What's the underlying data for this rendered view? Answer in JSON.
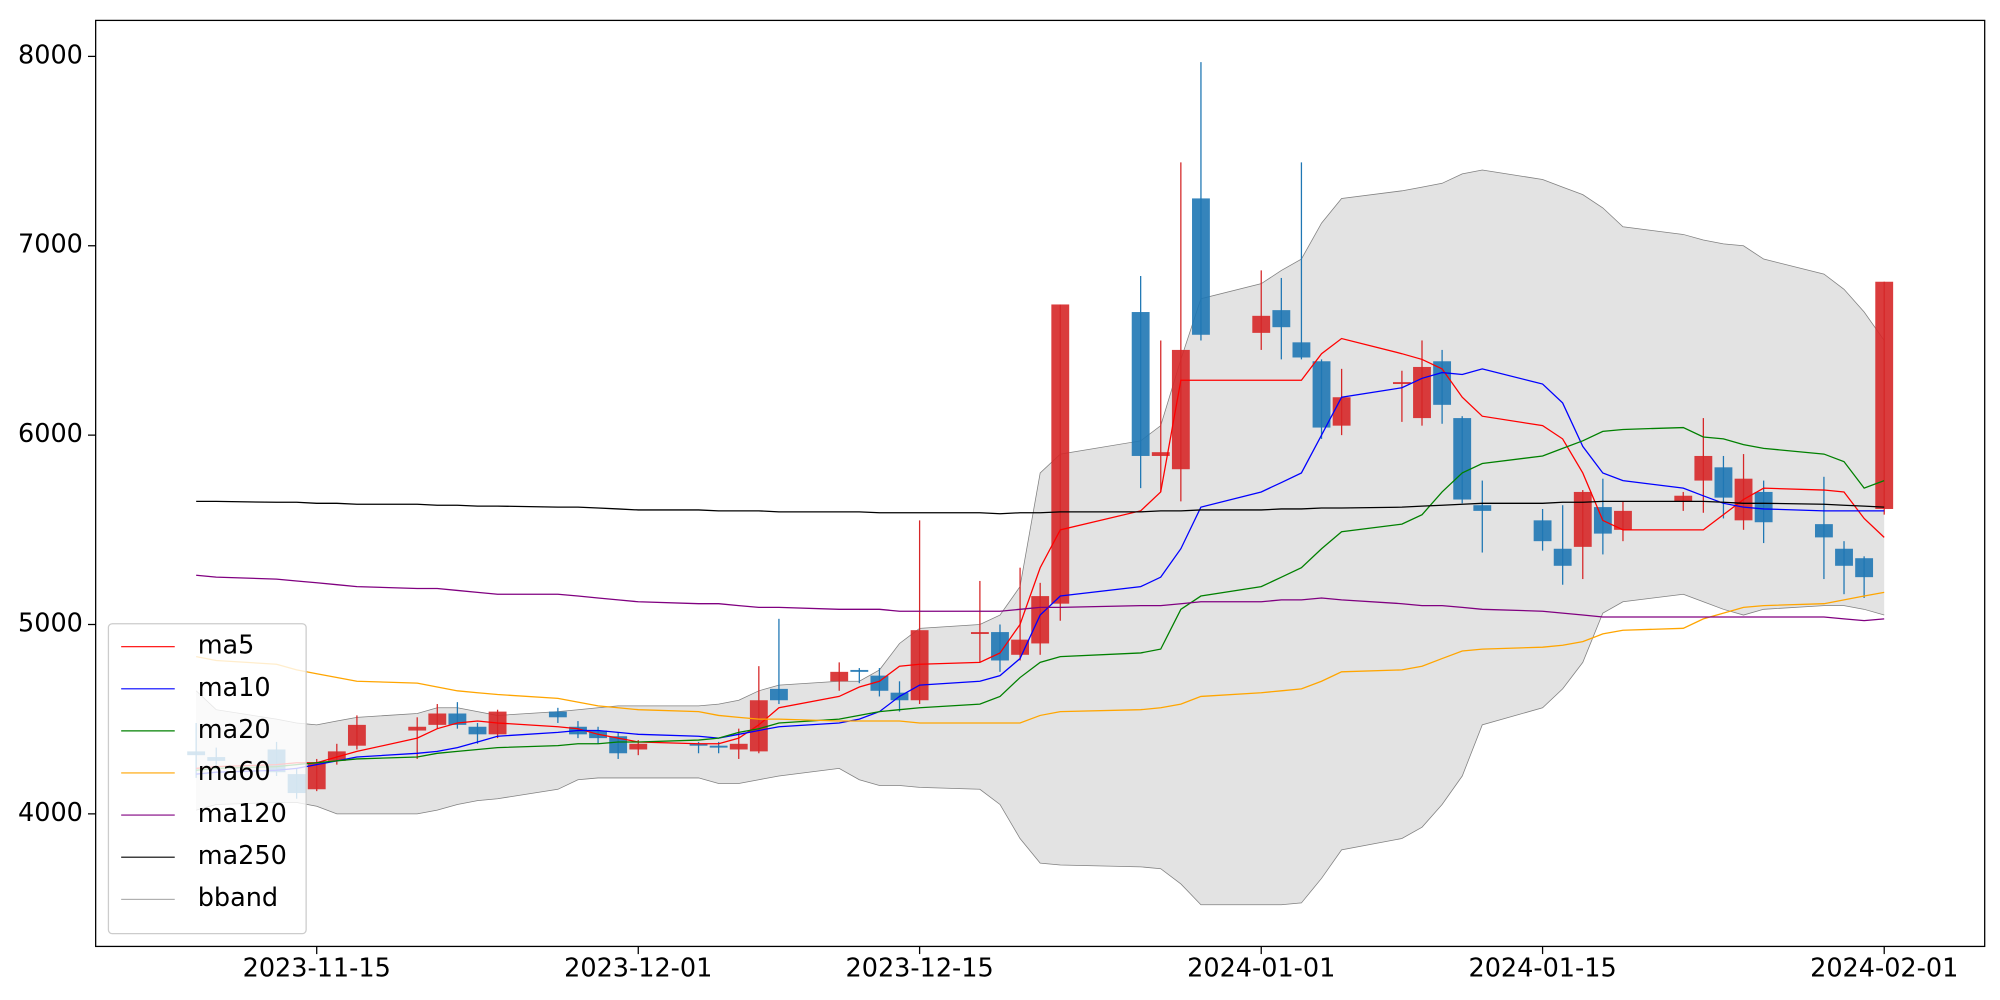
{
  "chart_data": {
    "type": "candlestick",
    "x": [
      "2023-11-09",
      "2023-11-10",
      "2023-11-13",
      "2023-11-14",
      "2023-11-15",
      "2023-11-16",
      "2023-11-17",
      "2023-11-20",
      "2023-11-21",
      "2023-11-22",
      "2023-11-23",
      "2023-11-24",
      "2023-11-27",
      "2023-11-28",
      "2023-11-29",
      "2023-11-30",
      "2023-12-01",
      "2023-12-04",
      "2023-12-05",
      "2023-12-06",
      "2023-12-07",
      "2023-12-08",
      "2023-12-11",
      "2023-12-12",
      "2023-12-13",
      "2023-12-14",
      "2023-12-15",
      "2023-12-18",
      "2023-12-19",
      "2023-12-20",
      "2023-12-21",
      "2023-12-22",
      "2023-12-26",
      "2023-12-27",
      "2023-12-28",
      "2023-12-29",
      "2024-01-01",
      "2024-01-02",
      "2024-01-03",
      "2024-01-04",
      "2024-01-05",
      "2024-01-08",
      "2024-01-09",
      "2024-01-10",
      "2024-01-11",
      "2024-01-12",
      "2024-01-15",
      "2024-01-16",
      "2024-01-17",
      "2024-01-18",
      "2024-01-19",
      "2024-01-22",
      "2024-01-23",
      "2024-01-24",
      "2024-01-25",
      "2024-01-26",
      "2024-01-29",
      "2024-01-30",
      "2024-01-31",
      "2024-02-01"
    ],
    "open": [
      4330,
      4300,
      4340,
      4210,
      4130,
      4280,
      4360,
      4440,
      4470,
      4530,
      4460,
      4420,
      4540,
      4460,
      4440,
      4410,
      4340,
      4370,
      4360,
      4340,
      4330,
      4660,
      4700,
      4760,
      4730,
      4640,
      4600,
      4950,
      4960,
      4840,
      4900,
      5110,
      6650,
      5890,
      5820,
      7250,
      6540,
      6660,
      6490,
      6390,
      6050,
      6270,
      6090,
      6390,
      6090,
      5630,
      5550,
      5400,
      5410,
      5620,
      5500,
      5650,
      5760,
      5830,
      5550,
      5700,
      5530,
      5400,
      5350,
      5610
    ],
    "high": [
      4480,
      4350,
      4380,
      4240,
      4290,
      4370,
      4520,
      4510,
      4580,
      4590,
      4480,
      4550,
      4560,
      4490,
      4460,
      4430,
      4390,
      4380,
      4380,
      4450,
      4780,
      5030,
      4800,
      4770,
      4770,
      4700,
      5550,
      5230,
      5000,
      5300,
      5220,
      6690,
      6840,
      6500,
      7440,
      7970,
      6870,
      6830,
      7440,
      6400,
      6350,
      6340,
      6500,
      6450,
      6100,
      5760,
      5610,
      5630,
      5710,
      5770,
      5650,
      5700,
      6090,
      5890,
      5900,
      5760,
      5780,
      5440,
      5360,
      6810
    ],
    "low": [
      4190,
      4260,
      4200,
      4080,
      4120,
      4260,
      4340,
      4290,
      4450,
      4450,
      4370,
      4400,
      4480,
      4400,
      4370,
      4290,
      4310,
      4320,
      4320,
      4290,
      4320,
      4580,
      4650,
      4690,
      4620,
      4540,
      4580,
      4800,
      4750,
      4810,
      4840,
      5020,
      5720,
      5700,
      5650,
      6500,
      6450,
      6400,
      6400,
      5980,
      6000,
      6070,
      6050,
      6060,
      5640,
      5380,
      5390,
      5210,
      5240,
      5370,
      5440,
      5600,
      5590,
      5560,
      5500,
      5430,
      5240,
      5160,
      5140,
      5580
    ],
    "close": [
      4310,
      4280,
      4220,
      4110,
      4270,
      4330,
      4470,
      4460,
      4530,
      4470,
      4420,
      4540,
      4510,
      4420,
      4400,
      4320,
      4370,
      4360,
      4350,
      4370,
      4600,
      4600,
      4750,
      4750,
      4650,
      4600,
      4970,
      4960,
      4810,
      4920,
      5150,
      6690,
      5890,
      5910,
      6450,
      6530,
      6630,
      6570,
      6410,
      6040,
      6200,
      6280,
      6360,
      6160,
      5660,
      5600,
      5440,
      5310,
      5700,
      5480,
      5600,
      5680,
      5890,
      5670,
      5770,
      5540,
      5460,
      5310,
      5250,
      6810
    ],
    "up_color": "#d62728",
    "down_color": "#1f77b4",
    "series": [
      {
        "name": "ma5",
        "color": "#ff0000",
        "values": [
          4240,
          4250,
          4260,
          4270,
          4270,
          4300,
          4330,
          4400,
          4450,
          4480,
          4490,
          4480,
          4460,
          4450,
          4420,
          4400,
          4380,
          4370,
          4370,
          4400,
          4470,
          4560,
          4620,
          4670,
          4700,
          4780,
          4790,
          4800,
          4850,
          5000,
          5300,
          5500,
          5600,
          5700,
          6290,
          6290,
          6290,
          6290,
          6290,
          6430,
          6510,
          6430,
          6400,
          6350,
          6200,
          6100,
          6050,
          5980,
          5800,
          5550,
          5500,
          5500,
          5500,
          5580,
          5660,
          5720,
          5710,
          5700,
          5560,
          5460
        ]
      },
      {
        "name": "ma10",
        "color": "#0000ff",
        "values": [
          4210,
          4220,
          4230,
          4240,
          4260,
          4280,
          4300,
          4320,
          4330,
          4350,
          4380,
          4410,
          4430,
          4440,
          4440,
          4430,
          4420,
          4410,
          4400,
          4420,
          4440,
          4460,
          4480,
          4500,
          4540,
          4620,
          4680,
          4700,
          4730,
          4820,
          5050,
          5150,
          5200,
          5250,
          5400,
          5620,
          5700,
          5750,
          5800,
          6000,
          6200,
          6250,
          6300,
          6330,
          6320,
          6350,
          6270,
          6170,
          5940,
          5800,
          5760,
          5720,
          5680,
          5640,
          5620,
          5610,
          5600,
          5600,
          5600,
          5600
        ]
      },
      {
        "name": "ma20",
        "color": "#008000",
        "values": [
          4230,
          4240,
          4250,
          4260,
          4270,
          4280,
          4290,
          4300,
          4320,
          4330,
          4340,
          4350,
          4360,
          4370,
          4370,
          4380,
          4380,
          4390,
          4400,
          4430,
          4450,
          4480,
          4500,
          4520,
          4540,
          4550,
          4560,
          4580,
          4620,
          4720,
          4800,
          4830,
          4850,
          4870,
          5080,
          5150,
          5200,
          5250,
          5300,
          5400,
          5490,
          5530,
          5580,
          5700,
          5800,
          5850,
          5890,
          5930,
          5970,
          6020,
          6030,
          6040,
          5990,
          5980,
          5950,
          5930,
          5900,
          5860,
          5720,
          5760
        ]
      },
      {
        "name": "ma60",
        "color": "#ffa500",
        "values": [
          4830,
          4810,
          4790,
          4760,
          4740,
          4720,
          4700,
          4690,
          4670,
          4650,
          4640,
          4630,
          4610,
          4590,
          4570,
          4560,
          4550,
          4540,
          4520,
          4510,
          4500,
          4500,
          4490,
          4490,
          4490,
          4490,
          4480,
          4480,
          4480,
          4480,
          4520,
          4540,
          4550,
          4560,
          4580,
          4620,
          4640,
          4650,
          4660,
          4700,
          4750,
          4760,
          4780,
          4820,
          4860,
          4870,
          4880,
          4890,
          4910,
          4950,
          4970,
          4980,
          5030,
          5060,
          5090,
          5100,
          5110,
          5130,
          5150,
          5170
        ]
      },
      {
        "name": "ma120",
        "color": "#800080",
        "values": [
          5260,
          5250,
          5240,
          5230,
          5220,
          5210,
          5200,
          5190,
          5190,
          5180,
          5170,
          5160,
          5160,
          5150,
          5140,
          5130,
          5120,
          5110,
          5110,
          5100,
          5090,
          5090,
          5080,
          5080,
          5080,
          5070,
          5070,
          5070,
          5070,
          5080,
          5090,
          5090,
          5100,
          5100,
          5110,
          5120,
          5120,
          5130,
          5130,
          5140,
          5130,
          5110,
          5100,
          5100,
          5090,
          5080,
          5070,
          5060,
          5050,
          5040,
          5040,
          5040,
          5040,
          5040,
          5040,
          5040,
          5040,
          5030,
          5020,
          5030
        ]
      },
      {
        "name": "ma250",
        "color": "#000000",
        "values": [
          5650,
          5650,
          5645,
          5645,
          5640,
          5640,
          5635,
          5635,
          5630,
          5630,
          5625,
          5625,
          5620,
          5620,
          5615,
          5610,
          5605,
          5605,
          5600,
          5600,
          5600,
          5595,
          5595,
          5595,
          5590,
          5590,
          5590,
          5590,
          5585,
          5590,
          5590,
          5595,
          5595,
          5600,
          5600,
          5605,
          5605,
          5610,
          5610,
          5615,
          5615,
          5620,
          5625,
          5630,
          5635,
          5640,
          5640,
          5645,
          5645,
          5650,
          5650,
          5650,
          5650,
          5645,
          5640,
          5640,
          5635,
          5630,
          5625,
          5620
        ]
      }
    ],
    "bband": {
      "name": "bband",
      "color": "#808080",
      "fill": "#e3e3e3",
      "upper": [
        4650,
        4550,
        4500,
        4480,
        4470,
        4490,
        4510,
        4530,
        4560,
        4560,
        4540,
        4520,
        4540,
        4550,
        4560,
        4570,
        4570,
        4570,
        4580,
        4600,
        4650,
        4680,
        4700,
        4700,
        4760,
        4900,
        4980,
        5000,
        5050,
        5200,
        5800,
        5900,
        5970,
        6050,
        6400,
        6720,
        6800,
        6870,
        6930,
        7120,
        7250,
        7290,
        7310,
        7330,
        7380,
        7400,
        7350,
        7310,
        7270,
        7200,
        7100,
        7060,
        7030,
        7010,
        7000,
        6930,
        6850,
        6770,
        6650,
        6500
      ],
      "lower": [
        4020,
        4050,
        4060,
        4060,
        4040,
        4000,
        4000,
        4000,
        4020,
        4050,
        4070,
        4080,
        4130,
        4180,
        4190,
        4190,
        4190,
        4190,
        4160,
        4160,
        4180,
        4200,
        4240,
        4180,
        4150,
        4150,
        4140,
        4130,
        4050,
        3870,
        3740,
        3730,
        3720,
        3710,
        3630,
        3520,
        3520,
        3520,
        3530,
        3660,
        3810,
        3870,
        3930,
        4050,
        4200,
        4470,
        4560,
        4660,
        4800,
        5060,
        5120,
        5160,
        5120,
        5080,
        5050,
        5080,
        5100,
        5100,
        5080,
        5050
      ]
    },
    "xlim": [
      "2023-11-04",
      "2024-02-06"
    ],
    "xticks": [
      "2023-11-15",
      "2023-12-01",
      "2023-12-15",
      "2024-01-01",
      "2024-01-15",
      "2024-02-01"
    ],
    "ylim": [
      3300,
      8190
    ],
    "yticks": [
      4000,
      5000,
      6000,
      7000,
      8000
    ],
    "legend": "lower left"
  }
}
